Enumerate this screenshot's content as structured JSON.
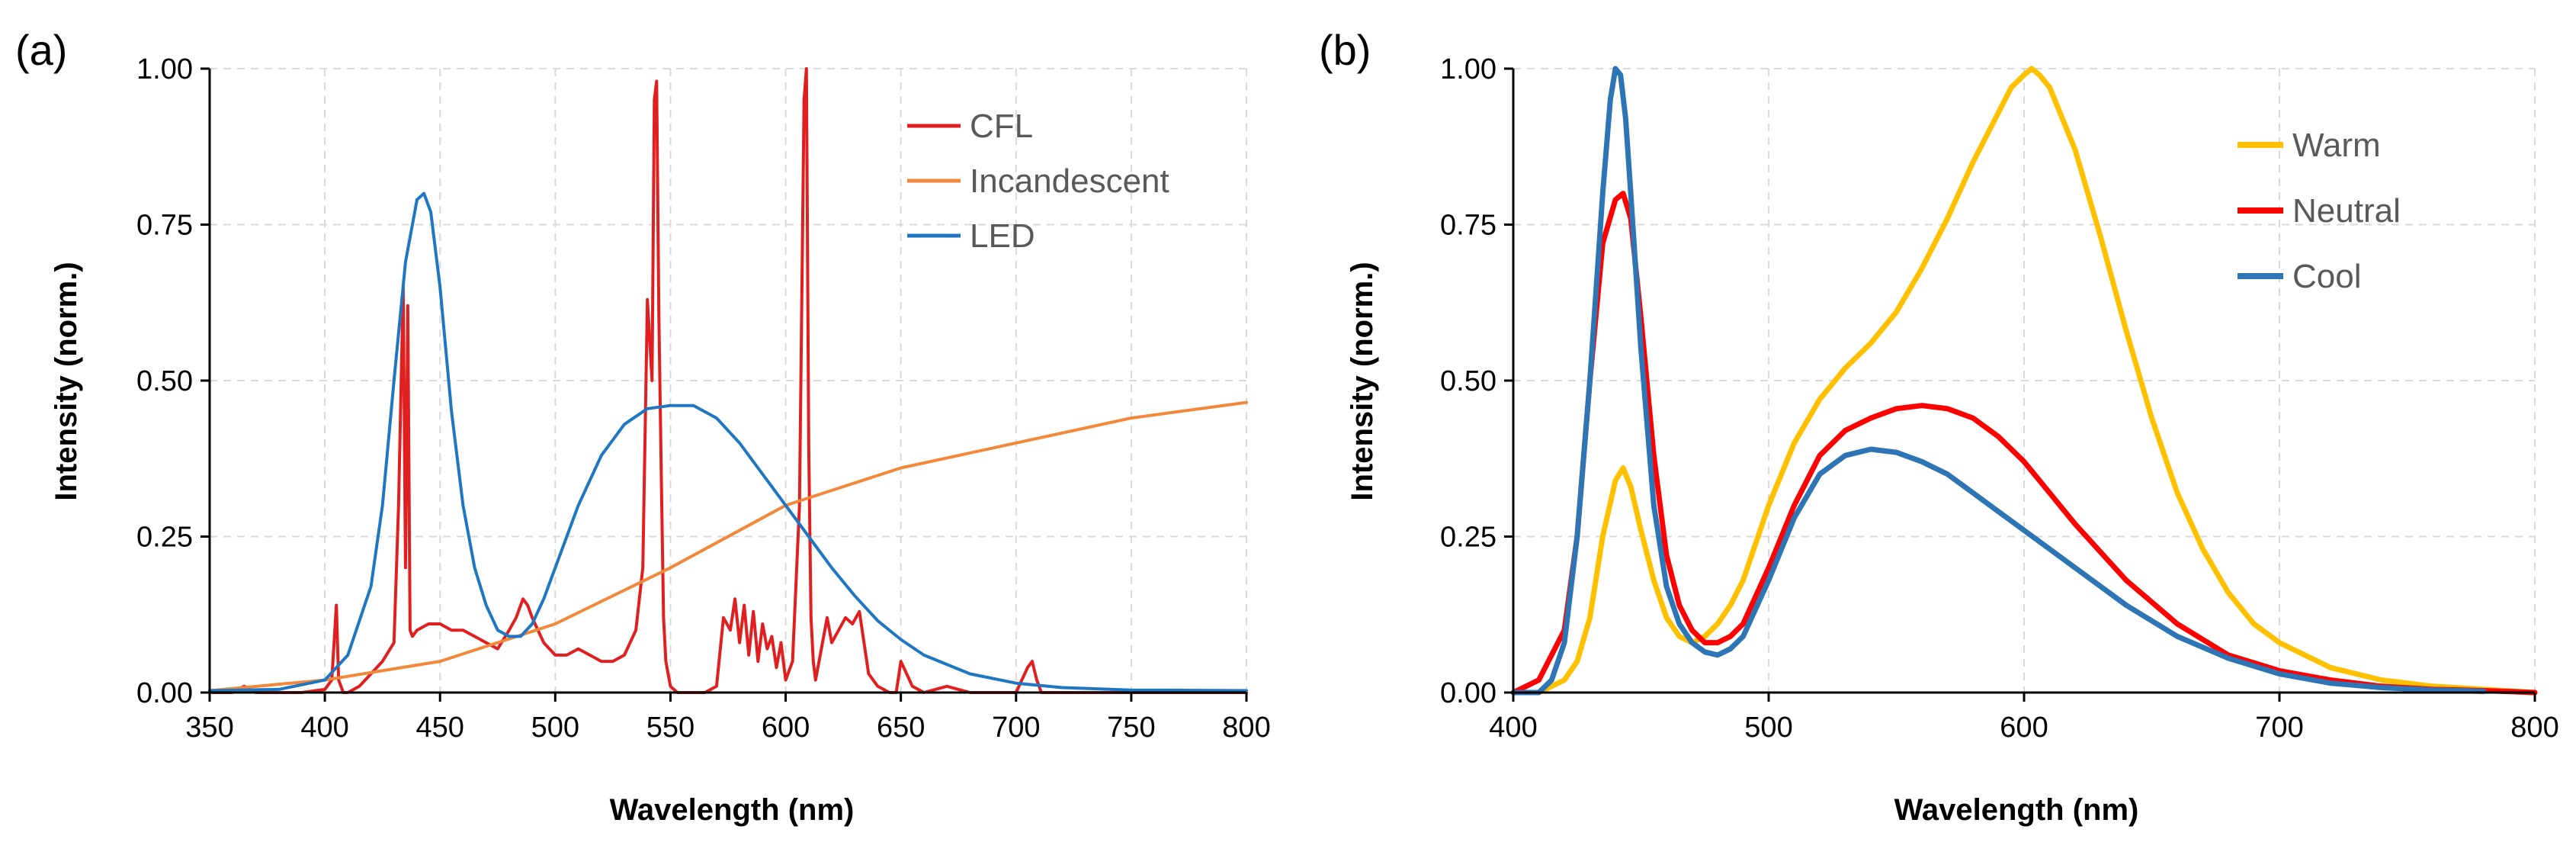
{
  "chart_data": [
    {
      "panel_label": "(a)",
      "type": "line",
      "xlabel": "Wavelength (nm)",
      "ylabel": "Intensity (norm.)",
      "xlim": [
        350,
        800
      ],
      "ylim": [
        0,
        1
      ],
      "xticks": [
        350,
        400,
        450,
        500,
        550,
        600,
        650,
        700,
        750,
        800
      ],
      "xtick_labels": [
        "350",
        "400",
        "450",
        "500",
        "550",
        "600",
        "650",
        "700",
        "750",
        "800"
      ],
      "yticks": [
        0,
        0.25,
        0.5,
        0.75,
        1.0
      ],
      "ytick_labels": [
        "0.00",
        "0.25",
        "0.50",
        "0.75",
        "1.00"
      ],
      "grid": true,
      "legend": "top-right",
      "series": [
        {
          "name": "CFL",
          "color": "#e02020",
          "x": [
            350,
            360,
            365,
            370,
            380,
            390,
            400,
            403,
            405,
            406,
            408,
            410,
            415,
            420,
            425,
            430,
            432,
            434,
            435,
            436,
            437,
            438,
            440,
            445,
            450,
            455,
            460,
            465,
            470,
            475,
            480,
            483,
            486,
            488,
            490,
            495,
            500,
            505,
            510,
            515,
            520,
            525,
            530,
            535,
            538,
            540,
            542,
            543,
            544,
            545,
            546,
            547,
            548,
            550,
            553,
            556,
            560,
            565,
            570,
            573,
            576,
            578,
            580,
            582,
            584,
            586,
            588,
            590,
            592,
            594,
            596,
            598,
            600,
            603,
            606,
            608,
            609,
            610,
            611,
            612,
            613,
            615,
            618,
            620,
            623,
            626,
            629,
            632,
            636,
            640,
            645,
            648,
            650,
            655,
            660,
            670,
            680,
            690,
            700,
            705,
            707,
            709,
            711,
            715,
            720,
            750,
            800
          ],
          "y": [
            0.0,
            0.0,
            0.01,
            0.0,
            0.0,
            0.0,
            0.005,
            0.02,
            0.14,
            0.02,
            0.0,
            0.0,
            0.01,
            0.03,
            0.05,
            0.08,
            0.3,
            0.65,
            0.2,
            0.62,
            0.1,
            0.09,
            0.1,
            0.11,
            0.11,
            0.1,
            0.1,
            0.09,
            0.08,
            0.07,
            0.1,
            0.12,
            0.15,
            0.14,
            0.12,
            0.08,
            0.06,
            0.06,
            0.07,
            0.06,
            0.05,
            0.05,
            0.06,
            0.1,
            0.2,
            0.63,
            0.5,
            0.95,
            0.98,
            0.6,
            0.35,
            0.12,
            0.05,
            0.01,
            0.0,
            0.0,
            0.0,
            0.0,
            0.01,
            0.12,
            0.1,
            0.15,
            0.08,
            0.14,
            0.06,
            0.13,
            0.05,
            0.11,
            0.07,
            0.09,
            0.04,
            0.08,
            0.02,
            0.05,
            0.3,
            0.95,
            1.0,
            0.4,
            0.12,
            0.05,
            0.02,
            0.06,
            0.12,
            0.08,
            0.1,
            0.12,
            0.11,
            0.13,
            0.03,
            0.01,
            0.0,
            0.0,
            0.05,
            0.01,
            0.0,
            0.01,
            0.0,
            0.0,
            0.0,
            0.04,
            0.05,
            0.02,
            0.0,
            0.0,
            0.0,
            0.0,
            0.0
          ]
        },
        {
          "name": "Incandescent",
          "color": "#f2883a",
          "x": [
            350,
            400,
            450,
            500,
            550,
            600,
            650,
            700,
            750,
            800
          ],
          "y": [
            0.003,
            0.02,
            0.05,
            0.11,
            0.2,
            0.3,
            0.36,
            0.4,
            0.44,
            0.465
          ]
        },
        {
          "name": "LED",
          "color": "#1f77c1",
          "x": [
            350,
            380,
            400,
            410,
            420,
            425,
            430,
            435,
            440,
            443,
            446,
            450,
            455,
            460,
            465,
            470,
            475,
            480,
            485,
            490,
            495,
            500,
            510,
            520,
            530,
            540,
            550,
            560,
            570,
            580,
            590,
            600,
            610,
            620,
            630,
            640,
            650,
            660,
            680,
            700,
            720,
            750,
            800
          ],
          "y": [
            0.003,
            0.005,
            0.02,
            0.06,
            0.17,
            0.3,
            0.5,
            0.69,
            0.79,
            0.8,
            0.77,
            0.65,
            0.45,
            0.3,
            0.2,
            0.14,
            0.1,
            0.09,
            0.09,
            0.11,
            0.15,
            0.2,
            0.3,
            0.38,
            0.43,
            0.455,
            0.46,
            0.46,
            0.44,
            0.4,
            0.35,
            0.3,
            0.25,
            0.2,
            0.155,
            0.115,
            0.085,
            0.06,
            0.03,
            0.015,
            0.008,
            0.004,
            0.003
          ]
        }
      ]
    },
    {
      "panel_label": "(b)",
      "type": "line",
      "xlabel": "Wavelength (nm)",
      "ylabel": "Intensity (norm.)",
      "xlim": [
        400,
        800
      ],
      "ylim": [
        0,
        1
      ],
      "xticks": [
        400,
        500,
        600,
        700,
        800
      ],
      "xtick_labels": [
        "400",
        "500",
        "600",
        "700",
        "800"
      ],
      "yticks": [
        0,
        0.25,
        0.5,
        0.75,
        1.0
      ],
      "ytick_labels": [
        "0.00",
        "0.25",
        "0.50",
        "0.75",
        "1.00"
      ],
      "grid": true,
      "legend": "top-right",
      "series": [
        {
          "name": "Warm",
          "color": "#ffc000",
          "x": [
            400,
            410,
            420,
            425,
            430,
            435,
            440,
            443,
            446,
            450,
            455,
            460,
            465,
            470,
            475,
            480,
            485,
            490,
            500,
            510,
            520,
            530,
            540,
            550,
            560,
            570,
            580,
            590,
            595,
            600,
            603,
            606,
            610,
            620,
            630,
            640,
            650,
            660,
            670,
            680,
            690,
            700,
            720,
            740,
            760,
            780,
            800
          ],
          "y": [
            0.0,
            0.0,
            0.02,
            0.05,
            0.12,
            0.25,
            0.34,
            0.36,
            0.33,
            0.26,
            0.18,
            0.12,
            0.09,
            0.08,
            0.09,
            0.11,
            0.14,
            0.18,
            0.3,
            0.4,
            0.47,
            0.52,
            0.56,
            0.61,
            0.68,
            0.76,
            0.85,
            0.93,
            0.97,
            0.99,
            1.0,
            0.99,
            0.97,
            0.87,
            0.73,
            0.58,
            0.44,
            0.32,
            0.23,
            0.16,
            0.11,
            0.08,
            0.04,
            0.02,
            0.01,
            0.005,
            0.0
          ]
        },
        {
          "name": "Neutral",
          "color": "#ff0000",
          "x": [
            400,
            410,
            420,
            425,
            430,
            435,
            440,
            443,
            446,
            450,
            455,
            460,
            465,
            470,
            475,
            480,
            485,
            490,
            500,
            510,
            520,
            530,
            540,
            550,
            560,
            570,
            580,
            590,
            600,
            610,
            620,
            640,
            660,
            680,
            700,
            720,
            740,
            760,
            780,
            800
          ],
          "y": [
            0.0,
            0.02,
            0.1,
            0.25,
            0.5,
            0.72,
            0.79,
            0.8,
            0.76,
            0.6,
            0.38,
            0.22,
            0.14,
            0.1,
            0.08,
            0.08,
            0.09,
            0.11,
            0.2,
            0.3,
            0.38,
            0.42,
            0.44,
            0.455,
            0.46,
            0.455,
            0.44,
            0.41,
            0.37,
            0.32,
            0.27,
            0.18,
            0.11,
            0.06,
            0.035,
            0.02,
            0.01,
            0.005,
            0.003,
            0.0
          ]
        },
        {
          "name": "Cool",
          "color": "#2e75b6",
          "x": [
            400,
            410,
            415,
            420,
            425,
            430,
            435,
            438,
            440,
            442,
            444,
            446,
            450,
            455,
            460,
            465,
            470,
            475,
            480,
            485,
            490,
            500,
            510,
            520,
            530,
            540,
            550,
            560,
            570,
            580,
            590,
            600,
            620,
            640,
            660,
            680,
            700,
            720,
            740,
            760,
            780
          ],
          "y": [
            0.0,
            0.0,
            0.02,
            0.08,
            0.25,
            0.5,
            0.8,
            0.95,
            1.0,
            0.99,
            0.92,
            0.8,
            0.55,
            0.3,
            0.17,
            0.11,
            0.08,
            0.065,
            0.06,
            0.07,
            0.09,
            0.18,
            0.28,
            0.35,
            0.38,
            0.39,
            0.385,
            0.37,
            0.35,
            0.32,
            0.29,
            0.26,
            0.2,
            0.14,
            0.09,
            0.055,
            0.03,
            0.015,
            0.008,
            0.004,
            0.002
          ]
        }
      ]
    }
  ]
}
